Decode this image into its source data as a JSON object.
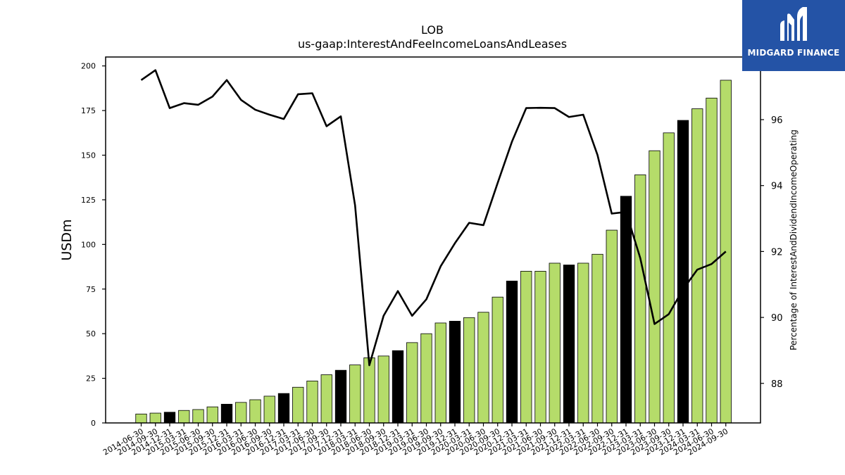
{
  "chart_data": {
    "type": "bar",
    "title": "LOB",
    "subtitle": "us-gaap:InterestAndFeeIncomeLoansAndLeases",
    "ylabel": "USDm",
    "y2label": "Percentage of InterestAndDividendIncomeOperating",
    "ylim": [
      0,
      205
    ],
    "y2lim": [
      86.8,
      97.9
    ],
    "yticks": [
      0,
      25,
      50,
      75,
      100,
      125,
      150,
      175,
      200
    ],
    "y2ticks": [
      88,
      90,
      92,
      94,
      96
    ],
    "grid": false,
    "categories": [
      "2014-06-30",
      "2014-09-30",
      "2014-12-31",
      "2015-03-31",
      "2015-06-30",
      "2015-09-30",
      "2015-12-31",
      "2016-03-31",
      "2016-06-30",
      "2016-09-30",
      "2016-12-31",
      "2017-03-31",
      "2017-06-30",
      "2017-09-30",
      "2017-12-31",
      "2018-03-31",
      "2018-06-30",
      "2018-09-30",
      "2018-12-31",
      "2019-03-31",
      "2019-06-30",
      "2019-09-30",
      "2019-12-31",
      "2020-03-31",
      "2020-06-30",
      "2020-09-30",
      "2020-12-31",
      "2021-03-31",
      "2021-06-30",
      "2021-09-30",
      "2021-12-31",
      "2022-03-31",
      "2022-06-30",
      "2022-09-30",
      "2022-12-31",
      "2023-03-31",
      "2023-06-30",
      "2023-09-30",
      "2023-12-31",
      "2024-03-31",
      "2024-06-30",
      "2024-09-30"
    ],
    "series": [
      {
        "type": "bar",
        "axis": "left",
        "values": [
          5,
          5.5,
          6,
          7,
          7.5,
          9,
          10.5,
          11.5,
          13,
          15,
          16.5,
          20,
          23.5,
          27,
          29.5,
          32.5,
          36.5,
          37.5,
          40.5,
          45,
          50,
          56,
          57,
          59,
          62,
          70.5,
          79.5,
          85,
          85,
          89.5,
          88.5,
          89.5,
          94.5,
          108,
          127,
          139,
          152.5,
          162.5,
          169.5,
          176,
          182,
          192
        ],
        "year_end_color": "#000000",
        "quarter_color": "#b5dc6a"
      },
      {
        "type": "line",
        "axis": "right",
        "color": "#000000",
        "values": [
          97.2,
          97.5,
          96.35,
          96.5,
          96.45,
          96.7,
          97.2,
          96.6,
          96.3,
          96.15,
          96.02,
          96.77,
          96.8,
          95.8,
          96.1,
          93.4,
          88.55,
          90.05,
          90.8,
          90.05,
          90.55,
          91.55,
          92.25,
          92.87,
          92.8,
          94.08,
          95.33,
          96.35,
          96.36,
          96.35,
          96.08,
          96.15,
          94.93,
          93.15,
          93.2,
          91.8,
          89.8,
          90.1,
          90.85,
          91.45,
          91.62,
          92.0
        ]
      }
    ]
  },
  "logo": {
    "text": "MIDGARD FINANCE"
  }
}
